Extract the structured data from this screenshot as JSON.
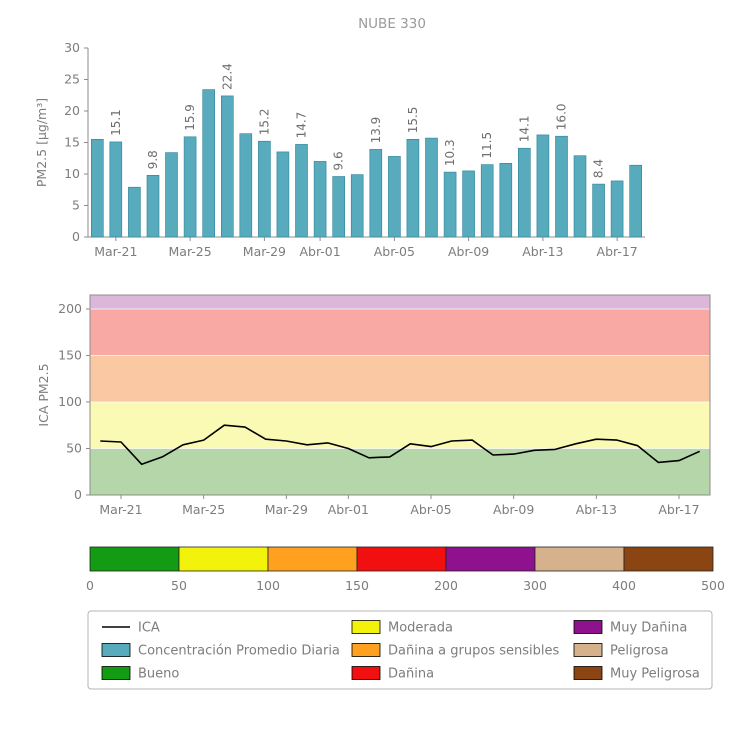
{
  "title": "NUBE 330",
  "chart_data": [
    {
      "type": "bar",
      "title": "NUBE 330",
      "ylabel": "PM2.5 [µg/m³]",
      "ylim": [
        0,
        30
      ],
      "yticks": [
        0,
        5,
        10,
        15,
        20,
        25,
        30
      ],
      "categories": [
        "Mar-20",
        "Mar-21",
        "Mar-22",
        "Mar-23",
        "Mar-24",
        "Mar-25",
        "Mar-26",
        "Mar-27",
        "Mar-28",
        "Mar-29",
        "Mar-30",
        "Mar-31",
        "Abr-01",
        "Abr-02",
        "Abr-03",
        "Abr-04",
        "Abr-05",
        "Abr-06",
        "Abr-07",
        "Abr-08",
        "Abr-09",
        "Abr-10",
        "Abr-11",
        "Abr-12",
        "Abr-13",
        "Abr-14",
        "Abr-15",
        "Abr-16",
        "Abr-17",
        "Abr-18"
      ],
      "values": [
        15.5,
        15.1,
        7.9,
        9.8,
        13.4,
        15.9,
        23.4,
        22.4,
        16.4,
        15.2,
        13.5,
        14.7,
        12.0,
        9.6,
        9.9,
        13.9,
        12.8,
        15.5,
        15.7,
        10.3,
        10.5,
        11.5,
        11.7,
        14.1,
        16.2,
        16.0,
        12.9,
        8.4,
        8.9,
        11.4
      ],
      "labeled_indices": [
        1,
        3,
        5,
        7,
        9,
        11,
        13,
        15,
        17,
        19,
        21,
        23,
        25,
        27
      ],
      "bar_labels": [
        "15.1",
        "9.8",
        "15.9",
        "22.4",
        "15.2",
        "14.7",
        "9.6",
        "13.9",
        "15.5",
        "10.3",
        "11.5",
        "14.1",
        "16.0",
        "8.4"
      ],
      "xtick_labels": [
        "Mar-21",
        "Mar-25",
        "Mar-29",
        "Abr-01",
        "Abr-05",
        "Abr-09",
        "Abr-13",
        "Abr-17"
      ],
      "bar_color": "#57abbd"
    },
    {
      "type": "line",
      "ylabel": "ICA PM2.5",
      "ylim": [
        0,
        215
      ],
      "yticks": [
        0,
        50,
        100,
        150,
        200
      ],
      "categories": [
        "Mar-20",
        "Mar-21",
        "Mar-22",
        "Mar-23",
        "Mar-24",
        "Mar-25",
        "Mar-26",
        "Mar-27",
        "Mar-28",
        "Mar-29",
        "Mar-30",
        "Mar-31",
        "Abr-01",
        "Abr-02",
        "Abr-03",
        "Abr-04",
        "Abr-05",
        "Abr-06",
        "Abr-07",
        "Abr-08",
        "Abr-09",
        "Abr-10",
        "Abr-11",
        "Abr-12",
        "Abr-13",
        "Abr-14",
        "Abr-15",
        "Abr-16",
        "Abr-17",
        "Abr-18"
      ],
      "values": [
        58,
        57,
        33,
        41,
        54,
        59,
        75,
        73,
        60,
        58,
        54,
        56,
        50,
        40,
        41,
        55,
        52,
        58,
        59,
        43,
        44,
        48,
        49,
        55,
        60,
        59,
        53,
        35,
        37,
        47
      ],
      "xtick_labels": [
        "Mar-21",
        "Mar-25",
        "Mar-29",
        "Abr-01",
        "Abr-05",
        "Abr-09",
        "Abr-13",
        "Abr-17"
      ],
      "line_color": "#000000",
      "bands": [
        {
          "from": 0,
          "to": 50,
          "color": "#b5d6a9",
          "label": "Bueno"
        },
        {
          "from": 50,
          "to": 100,
          "color": "#fbfab4",
          "label": "Moderada"
        },
        {
          "from": 100,
          "to": 150,
          "color": "#fac8a2",
          "label": "Dañina a grupos sensibles"
        },
        {
          "from": 150,
          "to": 200,
          "color": "#f8a9a4",
          "label": "Dañina"
        },
        {
          "from": 200,
          "to": 215,
          "color": "#dcb7da",
          "label": "Muy Dañina"
        }
      ]
    },
    {
      "type": "colorbar",
      "ticks": [
        0,
        50,
        100,
        150,
        200,
        300,
        400,
        500
      ],
      "segments": [
        {
          "color": "#149b14",
          "label": "Bueno"
        },
        {
          "color": "#f2f20a",
          "label": "Moderada"
        },
        {
          "color": "#ffa01e",
          "label": "Dañina a grupos sensibles"
        },
        {
          "color": "#f20f0f",
          "label": "Dañina"
        },
        {
          "color": "#8e118e",
          "label": "Muy Dañina"
        },
        {
          "color": "#d6b28c",
          "label": "Peligrosa"
        },
        {
          "color": "#8b4513",
          "label": "Muy Peligrosa"
        }
      ]
    }
  ],
  "legend": {
    "items": [
      {
        "label": "ICA",
        "swatch": "line",
        "color": "#000000"
      },
      {
        "label": "Concentración Promedio Diaria",
        "swatch": "rect",
        "color": "#57abbd"
      },
      {
        "label": "Bueno",
        "swatch": "rect",
        "color": "#149b14"
      },
      {
        "label": "Moderada",
        "swatch": "rect",
        "color": "#f2f20a"
      },
      {
        "label": "Dañina a grupos sensibles",
        "swatch": "rect",
        "color": "#ffa01e"
      },
      {
        "label": "Dañina",
        "swatch": "rect",
        "color": "#f20f0f"
      },
      {
        "label": "Muy Dañina",
        "swatch": "rect",
        "color": "#8e118e"
      },
      {
        "label": "Peligrosa",
        "swatch": "rect",
        "color": "#d6b28c"
      },
      {
        "label": "Muy Peligrosa",
        "swatch": "rect",
        "color": "#8b4513"
      }
    ]
  }
}
